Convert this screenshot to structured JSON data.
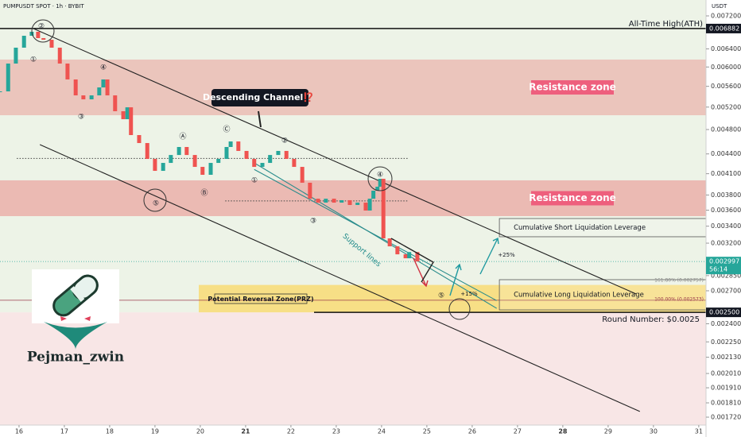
{
  "chart_data": {
    "type": "candlestick",
    "title": "PUMPUSDT SPOT · 1h · BYBIT",
    "currency": "USDT",
    "log_scale": true,
    "xlim": [
      15.58,
      31.16
    ],
    "ylim": [
      0.001672,
      0.00762
    ],
    "xticks": [
      16,
      17,
      18,
      19,
      20,
      21,
      22,
      23,
      24,
      25,
      26,
      27,
      28,
      29,
      30,
      31
    ],
    "xtick_bold": [
      21,
      28
    ],
    "yticks": [
      {
        "value": 0.0072,
        "label": "0.007200"
      },
      {
        "value": 0.0064,
        "label": "0.006400"
      },
      {
        "value": 0.006,
        "label": "0.006000"
      },
      {
        "value": 0.0056,
        "label": "0.005600"
      },
      {
        "value": 0.0052,
        "label": "0.005200"
      },
      {
        "value": 0.0048,
        "label": "0.004800"
      },
      {
        "value": 0.0044,
        "label": "0.004400"
      },
      {
        "value": 0.0041,
        "label": "0.004100"
      },
      {
        "value": 0.0038,
        "label": "0.003800"
      },
      {
        "value": 0.0036,
        "label": "0.003600"
      },
      {
        "value": 0.0034,
        "label": "0.003400"
      },
      {
        "value": 0.0032,
        "label": "0.003200"
      },
      {
        "value": 0.00285,
        "label": "0.002850"
      },
      {
        "value": 0.0027,
        "label": "0.002700"
      },
      {
        "value": 0.0024,
        "label": "0.002400"
      },
      {
        "value": 0.00225,
        "label": "0.002250"
      },
      {
        "value": 0.00213,
        "label": "0.002130"
      },
      {
        "value": 0.00201,
        "label": "0.002010"
      },
      {
        "value": 0.00191,
        "label": "0.001910"
      },
      {
        "value": 0.00181,
        "label": "0.001810"
      },
      {
        "value": 0.00172,
        "label": "0.001720"
      }
    ],
    "ath": 0.006882,
    "round_number": {
      "value": 0.0025,
      "label": "0.002500"
    },
    "last_price": 0.002997,
    "countdown": "56:14",
    "x": [
      15.58,
      15.76,
      15.93,
      16.11,
      16.28,
      16.42,
      16.54,
      16.72,
      16.9,
      17.07,
      17.25,
      17.42,
      17.6,
      17.77,
      17.86,
      17.95,
      18.12,
      18.3,
      18.39,
      18.47,
      18.65,
      18.83,
      19.0,
      19.18,
      19.35,
      19.53,
      19.7,
      19.88,
      20.05,
      20.23,
      20.4,
      20.58,
      20.67,
      20.84,
      21.02,
      21.19,
      21.37,
      21.54,
      21.72,
      21.9,
      22.07,
      22.25,
      22.42,
      22.6,
      22.77,
      22.95,
      23.12,
      23.3,
      23.47,
      23.65,
      23.74,
      23.82,
      23.91,
      23.97,
      24.04,
      24.18,
      24.35,
      24.53,
      24.61,
      24.79
    ],
    "series": [
      {
        "color_up": "#26a69a",
        "color_down": "#ef5350",
        "values": [
          0.0055,
          0.006074,
          0.006428,
          0.006707,
          0.006803,
          0.006651,
          0.006612,
          0.006428,
          0.006074,
          0.005739,
          0.005422,
          0.005346,
          0.005422,
          0.005578,
          0.005739,
          0.005422,
          0.005124,
          0.00498,
          0.005196,
          0.004706,
          0.004574,
          0.004322,
          0.004142,
          0.004261,
          0.004383,
          0.00451,
          0.004383,
          0.004201,
          0.004084,
          0.004261,
          0.004322,
          0.00451,
          0.0046,
          0.004447,
          0.004322,
          0.004201,
          0.004261,
          0.004383,
          0.004447,
          0.004322,
          0.004201,
          0.00397,
          0.00375,
          0.003698,
          0.00375,
          0.003698,
          0.00373,
          0.003667,
          0.003698,
          0.003595,
          0.00375,
          0.003859,
          0.003914,
          0.004026,
          0.003255,
          0.003164,
          0.003075,
          0.003032,
          0.0031,
          0.002997
        ]
      }
    ],
    "zones": [
      {
        "label": "Resistance zone",
        "range": [
          0.005051,
          0.006161
        ],
        "color": "#eab5ae"
      },
      {
        "label": "Resistance zone",
        "range": [
          0.003524,
          0.004004
        ],
        "color": "#eaa7a1"
      }
    ],
    "prz": {
      "label": "Potential Reversal Zone(PRZ)",
      "range": [
        0.0025,
        0.002757
      ],
      "color": "#f7df86"
    },
    "boxes": [
      {
        "label": "Cumulative Short Liquidation Leverage",
        "x": [
          26.6,
          31.16
        ],
        "range": [
          0.003274,
          0.003494
        ]
      },
      {
        "label": "Cumulative Long Liquidation Leverage",
        "x": [
          26.6,
          31.16
        ],
        "range": [
          0.002522,
          0.002809
        ]
      }
    ],
    "lines": [
      {
        "x": [
          16.28,
          29.62
        ],
        "y": [
          0.0069,
          0.002669
        ],
        "color": "#222222"
      },
      {
        "x": [
          16.46,
          29.7
        ],
        "y": [
          0.004548,
          0.001755
        ],
        "color": "#222222"
      },
      {
        "x": [
          21.19,
          26.54
        ],
        "y": [
          0.004261,
          0.002536
        ],
        "color": "#2a8c8c"
      },
      {
        "x": [
          21.19,
          26.54
        ],
        "y": [
          0.004163,
          0.002607
        ],
        "color": "#2a8c8c"
      }
    ],
    "dotted_levels": [
      {
        "x": [
          15.95,
          24.6
        ],
        "y": 0.00433
      },
      {
        "x": [
          20.55,
          24.6
        ],
        "y": 0.00372
      }
    ],
    "annotations": [
      "All-Time High(ATH)",
      "Descending Channel⁉️",
      "Support lines",
      "Round Number: $0.0025",
      "+25%",
      "+15%",
      "161.80% (0.002757)",
      "100.00% (0.002573)"
    ],
    "wave_labels": [
      "②",
      "①",
      "④",
      "③",
      "⑤",
      "Ⓐ",
      "Ⓑ",
      "Ⓒ",
      "②",
      "①",
      "③",
      "④",
      "⑤"
    ],
    "author": "Pejman_zwin"
  }
}
